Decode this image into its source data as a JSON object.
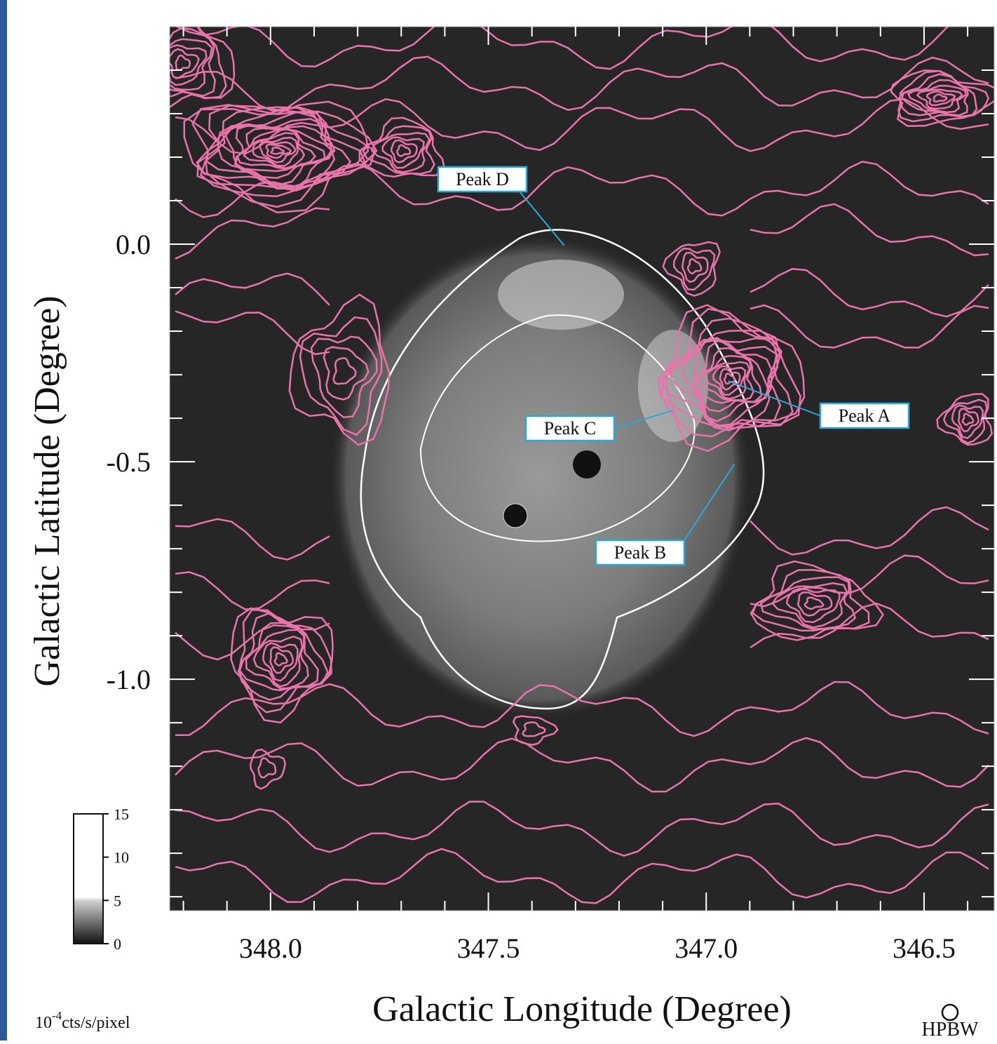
{
  "chart_data": {
    "type": "image",
    "x_label": "Galactic Longitude (Degree)",
    "y_label": "Galactic Latitude (Degree)",
    "xlim": [
      348.2315,
      346.339
    ],
    "ylim": [
      -1.532,
      0.5
    ],
    "xticks": [
      {
        "value": 348,
        "label": "348.0"
      },
      347.5,
      {
        "value": 347,
        "label": "347.0"
      },
      346.5
    ],
    "yticks": [
      {
        "value": 0,
        "label": "0.0"
      },
      -0.5,
      {
        "value": -1,
        "label": "-1.0"
      }
    ],
    "xminorticks": [
      348.2,
      348.1,
      347.9,
      347.8,
      347.7,
      347.6,
      347.4,
      347.3,
      347.2,
      347.1,
      346.9,
      346.8,
      346.7,
      346.6,
      346.4
    ],
    "yminorticks": [
      0.4,
      0.3,
      0.2,
      0.1,
      -0.1,
      -0.2,
      -0.3,
      -0.4,
      -0.6,
      -0.7,
      -0.8,
      -0.9,
      -1.1,
      -1.2,
      -1.3,
      -1.4,
      -1.5
    ],
    "annotations": [
      {
        "text": "Peak A",
        "l": 346.949,
        "b": -0.3145
      },
      {
        "text": "Peak B",
        "l": 346.936,
        "b": -0.506
      },
      {
        "text": "Peak C",
        "l": 347.077,
        "b": -0.382
      },
      {
        "text": "Peak D",
        "l": 347.326,
        "b": -0.003
      }
    ],
    "colorbar": {
      "lim": [
        0,
        15
      ],
      "ticks": [
        0,
        5,
        10,
        15
      ],
      "label_base": "10",
      "label_exponent": "-4",
      "label_unit": "cts/s/pixel"
    },
    "beam_label": "HPBW",
    "contour_color": "#e874aa",
    "annotation_color": "#2aa8d8"
  }
}
